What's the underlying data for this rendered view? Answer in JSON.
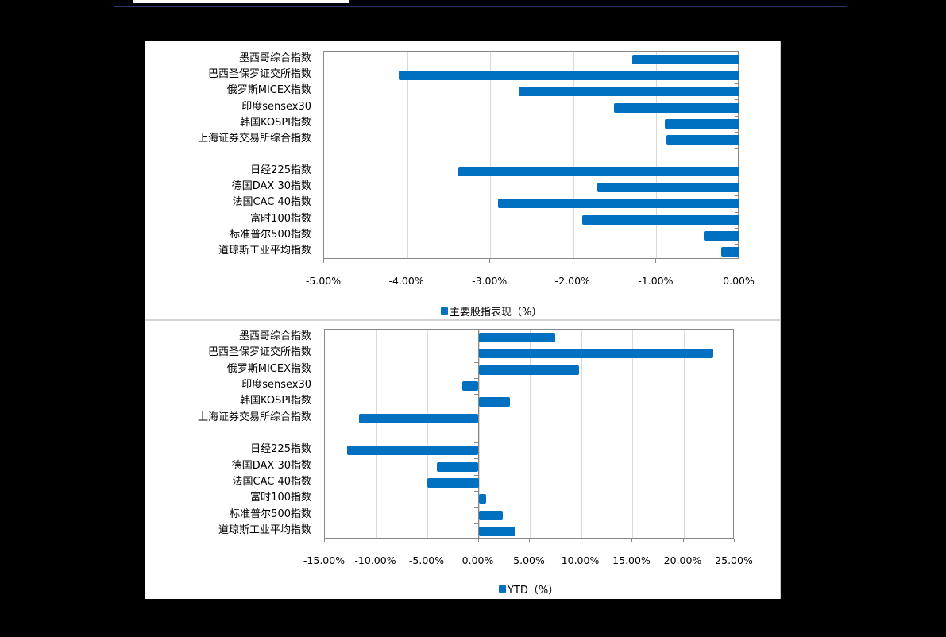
{
  "chart_data": [
    {
      "type": "bar",
      "orientation": "horizontal",
      "title": "",
      "xlabel": "",
      "ylabel": "",
      "categories": [
        "墨西哥综合指数",
        "巴西圣保罗证交所指数",
        "俄罗斯MICEX指数",
        "印度sensex30",
        "韩国KOSPI指数",
        "上海证券交易所综合指数",
        "",
        "日经225指数",
        "德国DAX 30指数",
        "法国CAC 40指数",
        "富时100指数",
        "标准普尔500指数",
        "道琼斯工业平均指数"
      ],
      "series": [
        {
          "name": "主要股指表现（%）",
          "values": [
            -1.29,
            -4.1,
            -2.66,
            -1.51,
            -0.9,
            -0.88,
            null,
            -3.38,
            -1.71,
            -2.91,
            -1.89,
            -0.43,
            -0.22
          ]
        }
      ],
      "xlim": [
        -5,
        0
      ],
      "x_ticks": [
        "-5.00%",
        "-4.00%",
        "-3.00%",
        "-2.00%",
        "-1.00%",
        "0.00%"
      ],
      "grid": true,
      "legend_position": "bottom",
      "color": "#0070c0"
    },
    {
      "type": "bar",
      "orientation": "horizontal",
      "title": "",
      "xlabel": "",
      "ylabel": "",
      "categories": [
        "墨西哥综合指数",
        "巴西圣保罗证交所指数",
        "俄罗斯MICEX指数",
        "印度sensex30",
        "韩国KOSPI指数",
        "上海证券交易所综合指数",
        "",
        "日经225指数",
        "德国DAX 30指数",
        "法国CAC 40指数",
        "富时100指数",
        "标准普尔500指数",
        "道琼斯工业平均指数"
      ],
      "series": [
        {
          "name": "YTD（%）",
          "values": [
            7.5,
            22.9,
            9.8,
            -1.6,
            3.1,
            -11.7,
            null,
            -12.8,
            -4.1,
            -5.0,
            0.7,
            2.4,
            3.6
          ]
        }
      ],
      "xlim": [
        -15,
        25
      ],
      "x_ticks": [
        "-15.00%",
        "-10.00%",
        "-5.00%",
        "0.00%",
        "5.00%",
        "10.00%",
        "15.00%",
        "20.00%",
        "25.00%"
      ],
      "grid": true,
      "legend_position": "bottom",
      "color": "#0070c0"
    }
  ],
  "charts": {
    "c1": {
      "legend": "主要股指表现（%）",
      "cats": [
        "墨西哥综合指数",
        "巴西圣保罗证交所指数",
        "俄罗斯MICEX指数",
        "印度sensex30",
        "韩国KOSPI指数",
        "上海证券交易所综合指数",
        "日经225指数",
        "德国DAX 30指数",
        "法国CAC 40指数",
        "富时100指数",
        "标准普尔500指数",
        "道琼斯工业平均指数"
      ],
      "ticks": [
        "-5.00%",
        "-4.00%",
        "-3.00%",
        "-2.00%",
        "-1.00%",
        "0.00%"
      ]
    },
    "c2": {
      "legend": "YTD（%）",
      "cats": [
        "墨西哥综合指数",
        "巴西圣保罗证交所指数",
        "俄罗斯MICEX指数",
        "印度sensex30",
        "韩国KOSPI指数",
        "上海证券交易所综合指数",
        "日经225指数",
        "德国DAX 30指数",
        "法国CAC 40指数",
        "富时100指数",
        "标准普尔500指数",
        "道琼斯工业平均指数"
      ],
      "ticks": [
        "-15.00%",
        "-10.00%",
        "-5.00%",
        "0.00%",
        "5.00%",
        "10.00%",
        "15.00%",
        "20.00%",
        "25.00%"
      ]
    }
  }
}
